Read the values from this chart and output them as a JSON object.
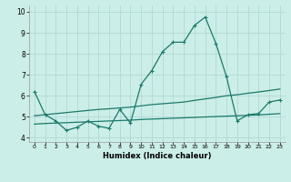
{
  "title": "",
  "xlabel": "Humidex (Indice chaleur)",
  "bg_color": "#cceee8",
  "grid_color": "#b0d8d4",
  "line_color": "#1a7a6a",
  "xlim": [
    -0.5,
    23.5
  ],
  "ylim": [
    3.8,
    10.3
  ],
  "xticks": [
    0,
    1,
    2,
    3,
    4,
    5,
    6,
    7,
    8,
    9,
    10,
    11,
    12,
    13,
    14,
    15,
    16,
    17,
    18,
    19,
    20,
    21,
    22,
    23
  ],
  "yticks": [
    4,
    5,
    6,
    7,
    8,
    9,
    10
  ],
  "line1_x": [
    0,
    1,
    2,
    3,
    4,
    5,
    6,
    7,
    8,
    9,
    10,
    11,
    12,
    13,
    14,
    15,
    16,
    17,
    18,
    19,
    20,
    21,
    22,
    23
  ],
  "line1_y": [
    6.2,
    5.1,
    4.8,
    4.35,
    4.5,
    4.8,
    4.55,
    4.45,
    5.35,
    4.7,
    6.55,
    7.2,
    8.1,
    8.55,
    8.55,
    9.35,
    9.75,
    8.5,
    6.9,
    4.8,
    5.1,
    5.15,
    5.7,
    5.8
  ],
  "line2_x": [
    0,
    1,
    2,
    3,
    4,
    5,
    6,
    7,
    8,
    9,
    10,
    11,
    12,
    13,
    14,
    15,
    16,
    17,
    18,
    19,
    20,
    21,
    22,
    23
  ],
  "line2_y": [
    5.05,
    5.1,
    5.15,
    5.2,
    5.25,
    5.3,
    5.35,
    5.38,
    5.42,
    5.46,
    5.52,
    5.58,
    5.62,
    5.66,
    5.7,
    5.78,
    5.85,
    5.92,
    6.0,
    6.05,
    6.12,
    6.18,
    6.25,
    6.32
  ],
  "line3_x": [
    0,
    1,
    2,
    3,
    4,
    5,
    6,
    7,
    8,
    9,
    10,
    11,
    12,
    13,
    14,
    15,
    16,
    17,
    18,
    19,
    20,
    21,
    22,
    23
  ],
  "line3_y": [
    4.65,
    4.68,
    4.7,
    4.72,
    4.74,
    4.76,
    4.78,
    4.8,
    4.82,
    4.84,
    4.87,
    4.89,
    4.91,
    4.93,
    4.95,
    4.97,
    4.99,
    5.01,
    5.03,
    5.05,
    5.07,
    5.09,
    5.12,
    5.15
  ]
}
